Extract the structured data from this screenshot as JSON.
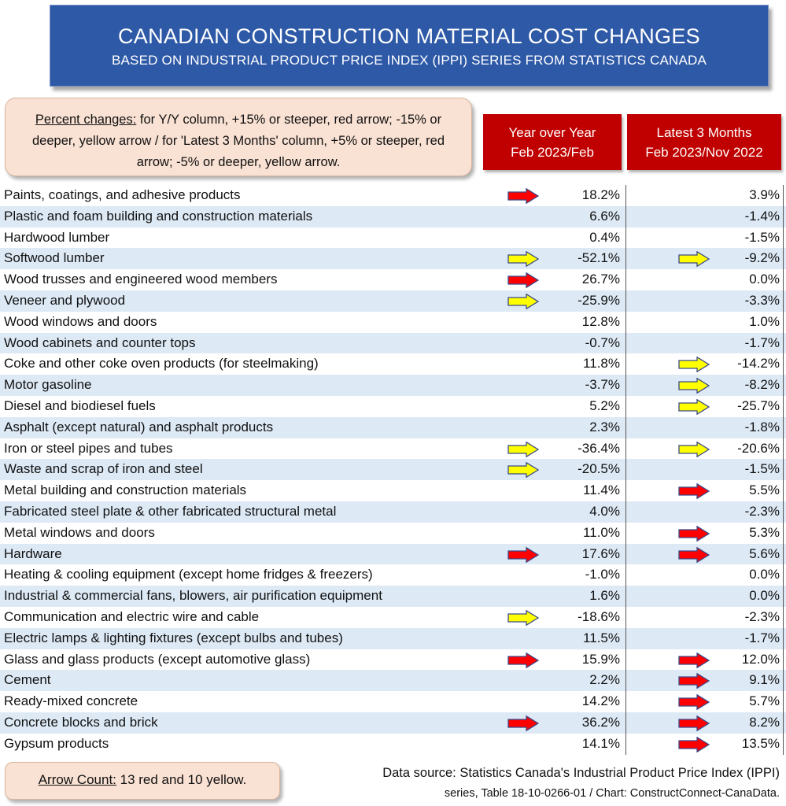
{
  "title": "CANADIAN CONSTRUCTION MATERIAL COST CHANGES",
  "subtitle": "BASED ON INDUSTRIAL PRODUCT PRICE INDEX (IPPI) SERIES FROM STATISTICS CANADA",
  "legend": {
    "label": "Percent changes:",
    "text": " for Y/Y column, +15% or steeper, red arrow; -15% or deeper, yellow arrow / for 'Latest 3 Months' column, +5% or steeper, red arrow; -5% or deeper, yellow arrow."
  },
  "columns": {
    "yoy": {
      "line1": "Year over Year",
      "line2": "Feb 2023/Feb"
    },
    "m3": {
      "line1": "Latest 3 Months",
      "line2": "Feb 2023/Nov 2022"
    }
  },
  "colors": {
    "red_arrow": "#ff0000",
    "yellow_arrow": "#ffff00",
    "header": "#c00000",
    "title_bg": "#2e59a7",
    "row_shade": "#dde9f5"
  },
  "chart_data": {
    "type": "table",
    "rows": [
      {
        "label": "Paints, coatings, and adhesive products",
        "yoy": "18.2%",
        "m3": "3.9%",
        "yoy_arrow": "red",
        "m3_arrow": ""
      },
      {
        "label": "Plastic and foam building and construction materials",
        "yoy": "6.6%",
        "m3": "-1.4%",
        "yoy_arrow": "",
        "m3_arrow": ""
      },
      {
        "label": "Hardwood lumber",
        "yoy": "0.4%",
        "m3": "-1.5%",
        "yoy_arrow": "",
        "m3_arrow": ""
      },
      {
        "label": "Softwood lumber",
        "yoy": "-52.1%",
        "m3": "-9.2%",
        "yoy_arrow": "yellow",
        "m3_arrow": "yellow"
      },
      {
        "label": "Wood trusses and engineered wood members",
        "yoy": "26.7%",
        "m3": "0.0%",
        "yoy_arrow": "red",
        "m3_arrow": ""
      },
      {
        "label": "Veneer and plywood",
        "yoy": "-25.9%",
        "m3": "-3.3%",
        "yoy_arrow": "yellow",
        "m3_arrow": ""
      },
      {
        "label": "Wood windows and doors",
        "yoy": "12.8%",
        "m3": "1.0%",
        "yoy_arrow": "",
        "m3_arrow": ""
      },
      {
        "label": "Wood cabinets and counter tops",
        "yoy": "-0.7%",
        "m3": "-1.7%",
        "yoy_arrow": "",
        "m3_arrow": ""
      },
      {
        "label": "Coke and other coke oven products (for steelmaking)",
        "yoy": "11.8%",
        "m3": "-14.2%",
        "yoy_arrow": "",
        "m3_arrow": "yellow"
      },
      {
        "label": "Motor gasoline",
        "yoy": "-3.7%",
        "m3": "-8.2%",
        "yoy_arrow": "",
        "m3_arrow": "yellow"
      },
      {
        "label": "Diesel and biodiesel fuels",
        "yoy": "5.2%",
        "m3": "-25.7%",
        "yoy_arrow": "",
        "m3_arrow": "yellow"
      },
      {
        "label": "Asphalt (except natural) and asphalt products",
        "yoy": "2.3%",
        "m3": "-1.8%",
        "yoy_arrow": "",
        "m3_arrow": ""
      },
      {
        "label": "Iron or steel pipes and tubes",
        "yoy": "-36.4%",
        "m3": "-20.6%",
        "yoy_arrow": "yellow",
        "m3_arrow": "yellow"
      },
      {
        "label": "Waste and scrap of iron and steel",
        "yoy": "-20.5%",
        "m3": "-1.5%",
        "yoy_arrow": "yellow",
        "m3_arrow": ""
      },
      {
        "label": "Metal building and construction materials",
        "yoy": "11.4%",
        "m3": "5.5%",
        "yoy_arrow": "",
        "m3_arrow": "red"
      },
      {
        "label": "Fabricated steel plate & other fabricated structural metal",
        "yoy": "4.0%",
        "m3": "-2.3%",
        "yoy_arrow": "",
        "m3_arrow": ""
      },
      {
        "label": "Metal windows and doors",
        "yoy": "11.0%",
        "m3": "5.3%",
        "yoy_arrow": "",
        "m3_arrow": "red"
      },
      {
        "label": "Hardware",
        "yoy": "17.6%",
        "m3": "5.6%",
        "yoy_arrow": "red",
        "m3_arrow": "red"
      },
      {
        "label": "Heating & cooling equipment (except home fridges & freezers)",
        "yoy": "-1.0%",
        "m3": "0.0%",
        "yoy_arrow": "",
        "m3_arrow": ""
      },
      {
        "label": "Industrial & commercial fans, blowers, air purification equipment",
        "yoy": "1.6%",
        "m3": "0.0%",
        "yoy_arrow": "",
        "m3_arrow": ""
      },
      {
        "label": "Communication and electric wire and cable",
        "yoy": "-18.6%",
        "m3": "-2.3%",
        "yoy_arrow": "yellow",
        "m3_arrow": ""
      },
      {
        "label": "Electric lamps & lighting fixtures (except bulbs and tubes)",
        "yoy": "11.5%",
        "m3": "-1.7%",
        "yoy_arrow": "",
        "m3_arrow": ""
      },
      {
        "label": "Glass and glass products (except automotive glass)",
        "yoy": "15.9%",
        "m3": "12.0%",
        "yoy_arrow": "red",
        "m3_arrow": "red"
      },
      {
        "label": "Cement",
        "yoy": "2.2%",
        "m3": "9.1%",
        "yoy_arrow": "",
        "m3_arrow": "red"
      },
      {
        "label": "Ready-mixed concrete",
        "yoy": "14.2%",
        "m3": "5.7%",
        "yoy_arrow": "",
        "m3_arrow": "red"
      },
      {
        "label": "Concrete blocks and brick",
        "yoy": "36.2%",
        "m3": "8.2%",
        "yoy_arrow": "red",
        "m3_arrow": "red"
      },
      {
        "label": "Gypsum products",
        "yoy": "14.1%",
        "m3": "13.5%",
        "yoy_arrow": "",
        "m3_arrow": "red"
      }
    ]
  },
  "footer": {
    "arrow_count_label": "Arrow Count:",
    "arrow_count_text": " 13 red and 10 yellow.",
    "source_line1": "Data source: Statistics Canada's Industrial Product Price Index (IPPI)",
    "source_line2": "series, Table 18-10-0266-01 / Chart: ConstructConnect-CanaData."
  }
}
